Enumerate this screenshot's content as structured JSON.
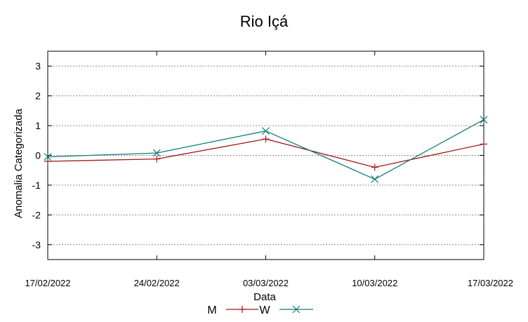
{
  "chart_data": {
    "type": "line",
    "title": "Rio Içá",
    "xlabel": "Data",
    "ylabel": "Anomalia Categorizada",
    "categories": [
      "17/02/2022",
      "24/02/2022",
      "03/03/2022",
      "10/03/2022",
      "17/03/2022"
    ],
    "ylim": [
      -3.5,
      3.5
    ],
    "yticks": [
      3,
      2,
      1,
      0,
      -1,
      -2,
      -3
    ],
    "ytick_labels": [
      "3",
      "2",
      "1",
      "0",
      "-1",
      "-2",
      "-3"
    ],
    "grid": true,
    "legend_position": "bottom",
    "series": [
      {
        "name": "M",
        "values": [
          -0.2,
          -0.12,
          0.55,
          -0.4,
          0.38
        ],
        "color": "#a01818",
        "marker": "plus"
      },
      {
        "name": "W",
        "values": [
          -0.05,
          0.08,
          0.82,
          -0.8,
          1.2
        ],
        "color": "#157a7a",
        "marker": "x"
      }
    ]
  }
}
